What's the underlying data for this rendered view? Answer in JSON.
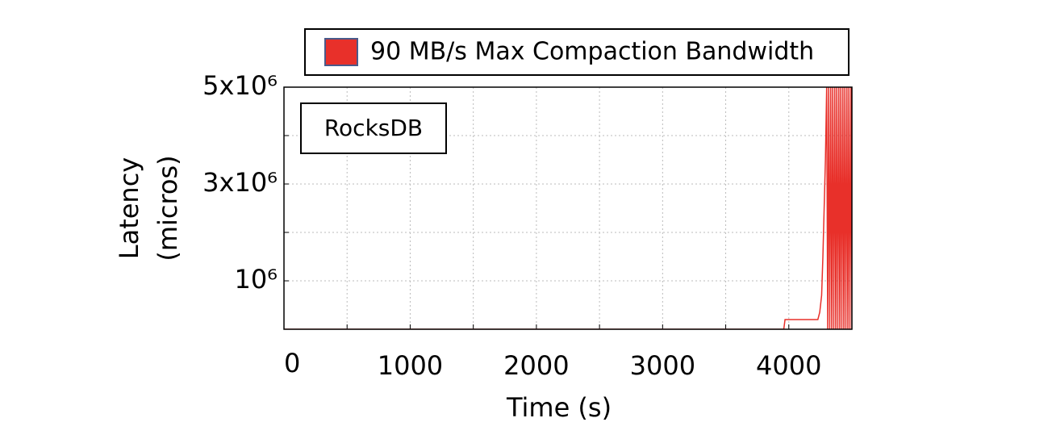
{
  "chart_data": {
    "type": "line",
    "ylabel": [
      "Latency",
      "(micros)"
    ],
    "xlabel": "Time (s)",
    "annotation": "RocksDB",
    "legend": "top",
    "grid": true,
    "xlim": [
      0,
      4500
    ],
    "ylim": [
      0,
      5000000
    ],
    "xticks": [
      0,
      1000,
      2000,
      3000,
      4000
    ],
    "yticks": [
      {
        "value": 1000000,
        "label": "10⁶"
      },
      {
        "value": 3000000,
        "label": "3x10⁶"
      },
      {
        "value": 5000000,
        "label": "5x10⁶"
      }
    ],
    "xgrid": [
      500,
      1000,
      1500,
      2000,
      2500,
      3000,
      3500,
      4000
    ],
    "ygrid": [
      1000000,
      2000000,
      3000000,
      4000000
    ],
    "x": [
      0,
      1000,
      2000,
      3000,
      3960,
      3970,
      4000,
      4100,
      4200,
      4230,
      4245,
      4260,
      4270,
      4280,
      4290,
      4300,
      4308,
      4316,
      4324,
      4332,
      4340,
      4348,
      4356,
      4364,
      4372,
      4380,
      4388,
      4396,
      4404,
      4412,
      4420,
      4428,
      4436,
      4444,
      4452,
      4460,
      4468,
      4476,
      4484,
      4492,
      4500
    ],
    "series": [
      {
        "name": "90 MB/s Max Compaction Bandwidth",
        "color": "#e8302a",
        "values": [
          0,
          0,
          0,
          0,
          0,
          200000,
          200000,
          200000,
          200000,
          200000,
          350000,
          700000,
          1500000,
          2500000,
          3500000,
          5000000,
          0,
          5000000,
          0,
          5000000,
          0,
          5000000,
          0,
          5000000,
          0,
          5000000,
          0,
          5000000,
          0,
          5000000,
          0,
          5000000,
          0,
          5000000,
          0,
          5000000,
          0,
          5000000,
          0,
          5000000,
          0
        ]
      }
    ]
  }
}
